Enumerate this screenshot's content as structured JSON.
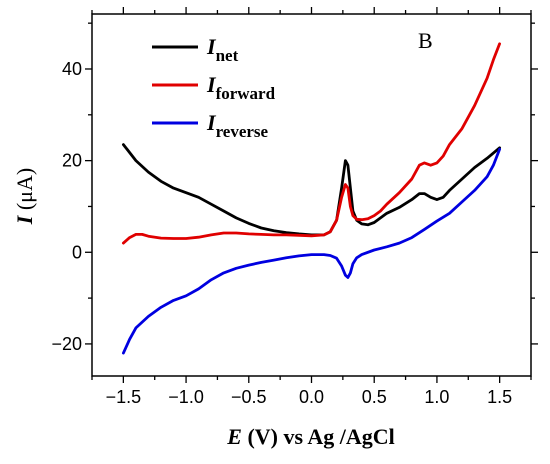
{
  "chart_data": {
    "type": "line",
    "panel_label": "B",
    "xlabel_parts": {
      "var": "E",
      "rest": " (V) vs Ag /AgCl"
    },
    "ylabel_parts": {
      "var": "I",
      "rest": " (μA)"
    },
    "xlim": [
      -1.75,
      1.75
    ],
    "ylim": [
      -27,
      52
    ],
    "x_ticks": [
      -1.5,
      -1.0,
      -0.5,
      0.0,
      0.5,
      1.0,
      1.5
    ],
    "x_tick_labels": [
      "−1.5",
      "−1.0",
      "−0.5",
      "0.0",
      "0.5",
      "1.0",
      "1.5"
    ],
    "y_ticks": [
      -20,
      0,
      20,
      40
    ],
    "y_tick_labels": [
      "−20",
      "0",
      "20",
      "40"
    ],
    "grid": false,
    "legend_position": "top-left",
    "series": [
      {
        "name_main": "I",
        "name_sub": "net",
        "color": "#000000",
        "x": [
          -1.5,
          -1.4,
          -1.3,
          -1.2,
          -1.1,
          -1.0,
          -0.9,
          -0.8,
          -0.7,
          -0.6,
          -0.5,
          -0.4,
          -0.3,
          -0.2,
          -0.1,
          0.0,
          0.1,
          0.15,
          0.2,
          0.24,
          0.27,
          0.29,
          0.31,
          0.33,
          0.36,
          0.4,
          0.45,
          0.5,
          0.55,
          0.6,
          0.7,
          0.8,
          0.86,
          0.9,
          0.95,
          1.0,
          1.05,
          1.1,
          1.2,
          1.3,
          1.4,
          1.5
        ],
        "y": [
          23.5,
          20.0,
          17.5,
          15.5,
          14.0,
          13.0,
          12.0,
          10.5,
          9.0,
          7.5,
          6.3,
          5.3,
          4.7,
          4.3,
          4.0,
          3.8,
          3.8,
          4.5,
          7.0,
          14.0,
          20.0,
          19.0,
          14.0,
          9.0,
          7.0,
          6.2,
          6.0,
          6.5,
          7.5,
          8.5,
          9.8,
          11.5,
          12.8,
          12.8,
          12.0,
          11.5,
          12.0,
          13.5,
          16.0,
          18.5,
          20.5,
          22.8
        ]
      },
      {
        "name_main": "I",
        "name_sub": "forward",
        "color": "#e00000",
        "x": [
          -1.5,
          -1.45,
          -1.4,
          -1.35,
          -1.3,
          -1.2,
          -1.1,
          -1.0,
          -0.9,
          -0.8,
          -0.7,
          -0.6,
          -0.5,
          -0.4,
          -0.3,
          -0.2,
          -0.1,
          0.0,
          0.1,
          0.15,
          0.2,
          0.24,
          0.27,
          0.29,
          0.31,
          0.33,
          0.36,
          0.4,
          0.45,
          0.5,
          0.55,
          0.6,
          0.7,
          0.8,
          0.86,
          0.9,
          0.95,
          1.0,
          1.05,
          1.1,
          1.2,
          1.3,
          1.4,
          1.45,
          1.5
        ],
        "y": [
          2.0,
          3.2,
          3.9,
          3.9,
          3.5,
          3.1,
          3.0,
          3.0,
          3.3,
          3.8,
          4.2,
          4.2,
          4.0,
          3.9,
          3.8,
          3.8,
          3.7,
          3.6,
          3.8,
          4.5,
          7.0,
          12.0,
          14.8,
          14.0,
          10.0,
          8.0,
          7.2,
          7.1,
          7.3,
          8.0,
          9.0,
          10.5,
          13.0,
          16.0,
          19.0,
          19.5,
          19.0,
          19.5,
          21.0,
          23.5,
          27.0,
          32.0,
          38.0,
          42.0,
          45.5
        ]
      },
      {
        "name_main": "I",
        "name_sub": "reverse",
        "color": "#0000e0",
        "x": [
          -1.5,
          -1.45,
          -1.4,
          -1.3,
          -1.2,
          -1.1,
          -1.0,
          -0.9,
          -0.8,
          -0.7,
          -0.6,
          -0.5,
          -0.4,
          -0.3,
          -0.2,
          -0.1,
          0.0,
          0.1,
          0.15,
          0.2,
          0.24,
          0.27,
          0.29,
          0.31,
          0.33,
          0.36,
          0.4,
          0.5,
          0.6,
          0.7,
          0.8,
          0.9,
          1.0,
          1.1,
          1.2,
          1.3,
          1.4,
          1.45,
          1.5
        ],
        "y": [
          -22.0,
          -19.0,
          -16.5,
          -14.0,
          -12.0,
          -10.5,
          -9.5,
          -8.0,
          -6.0,
          -4.5,
          -3.5,
          -2.8,
          -2.2,
          -1.7,
          -1.2,
          -0.8,
          -0.5,
          -0.5,
          -0.7,
          -1.3,
          -3.0,
          -5.0,
          -5.5,
          -4.5,
          -2.5,
          -1.2,
          -0.5,
          0.5,
          1.2,
          2.0,
          3.2,
          5.0,
          6.8,
          8.5,
          11.0,
          13.5,
          16.5,
          19.0,
          22.5
        ]
      }
    ]
  }
}
